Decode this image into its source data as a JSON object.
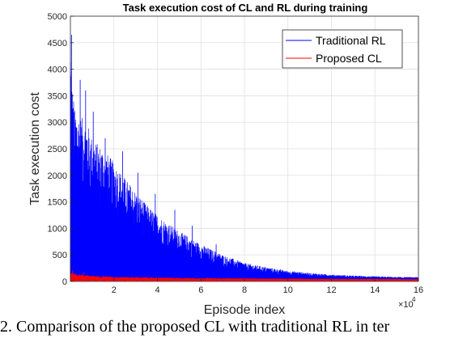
{
  "chart_data": {
    "type": "line",
    "title": "Task execution cost of CL and RL during training",
    "xlabel": "Episode index",
    "ylabel": "Task execution cost",
    "x_exponent_label": "×10",
    "x_exponent_power": "4",
    "xlim": [
      0,
      16
    ],
    "ylim": [
      0,
      5000
    ],
    "xticks": [
      2,
      4,
      6,
      8,
      10,
      12,
      14,
      16
    ],
    "yticks": [
      0,
      500,
      1000,
      1500,
      2000,
      2500,
      3000,
      3500,
      4000,
      4500,
      5000
    ],
    "grid": true,
    "legend_position": "top-right",
    "series": [
      {
        "name": "Traditional RL",
        "color": "#0000ff",
        "envelope_x": [
          0,
          0.05,
          0.2,
          0.5,
          0.8,
          1.0,
          1.5,
          2,
          2.5,
          3,
          3.5,
          4,
          4.5,
          5,
          6,
          7,
          8,
          9,
          10,
          11,
          12,
          13,
          14,
          15,
          16
        ],
        "envelope_y": [
          4650,
          3900,
          3250,
          3100,
          2950,
          2700,
          2500,
          2250,
          1950,
          1700,
          1450,
          1250,
          1100,
          950,
          700,
          500,
          350,
          270,
          200,
          160,
          130,
          110,
          95,
          85,
          80
        ],
        "baseline_y": [
          30,
          30,
          30,
          30,
          30,
          30,
          30,
          30,
          30,
          30,
          30,
          25,
          25,
          25,
          20,
          20,
          20,
          20,
          20,
          20,
          20,
          20,
          20,
          20,
          20
        ],
        "peaks": [
          {
            "x": 0.05,
            "y": 4650
          },
          {
            "x": 0.45,
            "y": 3800
          },
          {
            "x": 0.7,
            "y": 3600
          },
          {
            "x": 1.05,
            "y": 3200
          },
          {
            "x": 1.6,
            "y": 2700
          },
          {
            "x": 2.4,
            "y": 2450
          },
          {
            "x": 3.1,
            "y": 2050
          },
          {
            "x": 3.9,
            "y": 1650
          },
          {
            "x": 4.8,
            "y": 1350
          },
          {
            "x": 5.6,
            "y": 1050
          },
          {
            "x": 6.7,
            "y": 700
          }
        ]
      },
      {
        "name": "Proposed CL",
        "color": "#ff0000",
        "envelope_x": [
          0,
          0.3,
          1,
          2,
          4,
          6,
          8,
          10,
          12,
          14,
          16
        ],
        "envelope_y": [
          180,
          140,
          110,
          90,
          75,
          65,
          60,
          55,
          50,
          50,
          45
        ],
        "baseline_y": [
          10,
          10,
          10,
          10,
          10,
          10,
          10,
          10,
          10,
          10,
          10
        ],
        "peaks": [
          {
            "x": 0.1,
            "y": 210
          },
          {
            "x": 0.6,
            "y": 170
          }
        ]
      }
    ]
  },
  "caption": {
    "text": "2.  Comparison of the proposed CL with traditional RL in ter"
  }
}
